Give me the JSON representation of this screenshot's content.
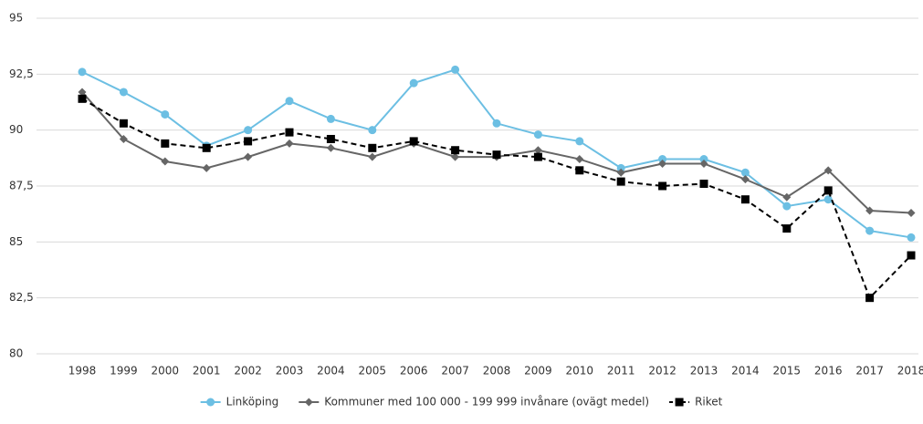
{
  "chart_data": {
    "type": "line",
    "categories": [
      "1998",
      "1999",
      "2000",
      "2001",
      "2002",
      "2003",
      "2004",
      "2005",
      "2006",
      "2007",
      "2008",
      "2009",
      "2010",
      "2011",
      "2012",
      "2013",
      "2014",
      "2015",
      "2016",
      "2017",
      "2018"
    ],
    "series": [
      {
        "name": "Linköping",
        "color": "#6cbfe3",
        "marker": "circle",
        "dashed": false,
        "values": [
          92.6,
          91.7,
          90.7,
          89.3,
          90.0,
          91.3,
          90.5,
          90.0,
          92.1,
          92.7,
          90.3,
          89.8,
          89.5,
          88.3,
          88.7,
          88.7,
          88.1,
          86.6,
          86.9,
          85.5,
          85.2
        ]
      },
      {
        "name": "Kommuner med 100 000 - 199 999 invånare (ovägt medel)",
        "color": "#666666",
        "marker": "diamond",
        "dashed": false,
        "values": [
          91.7,
          89.6,
          88.6,
          88.3,
          88.8,
          89.4,
          89.2,
          88.8,
          89.4,
          88.8,
          88.8,
          89.1,
          88.7,
          88.1,
          88.5,
          88.5,
          87.8,
          87.0,
          88.2,
          86.4,
          86.3
        ]
      },
      {
        "name": "Riket",
        "color": "#000000",
        "marker": "square",
        "dashed": true,
        "values": [
          91.4,
          90.3,
          89.4,
          89.2,
          89.5,
          89.9,
          89.6,
          89.2,
          89.5,
          89.1,
          88.9,
          88.8,
          88.2,
          87.7,
          87.5,
          87.6,
          86.9,
          85.6,
          87.3,
          82.5,
          84.4
        ]
      }
    ],
    "ylim": [
      80,
      95
    ],
    "yticks": [
      80,
      {
        "value": 82.5,
        "label": "82,5"
      },
      85,
      {
        "value": 87.5,
        "label": "87,5"
      },
      90,
      {
        "value": 92.5,
        "label": "92,5"
      },
      95
    ],
    "grid": true,
    "legend": "bottom"
  }
}
